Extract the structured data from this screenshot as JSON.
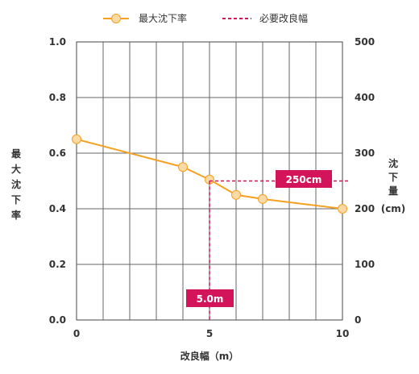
{
  "chart_data": {
    "type": "line",
    "x": [
      0,
      4,
      5,
      6,
      7,
      10
    ],
    "series": [
      {
        "name": "最大沈下率",
        "values": [
          0.65,
          0.55,
          0.505,
          0.45,
          0.435,
          0.4
        ],
        "color": "#f5a020",
        "marker_fill": "#fdd9a5"
      }
    ],
    "reference_line": {
      "name": "必要改良幅",
      "color": "#d4145a",
      "x": 5,
      "y2": 250
    },
    "xlabel": "改良幅（m）",
    "ylabel_left_chars": [
      "最",
      "大",
      "沈",
      "下",
      "率"
    ],
    "ylabel_right_chars": [
      "沈",
      "下",
      "量"
    ],
    "ylabel_right_unit": "(cm)",
    "xlim": [
      0,
      10
    ],
    "ylim": [
      0,
      1.0
    ],
    "y2lim": [
      0,
      500
    ],
    "x_ticks": [
      "0",
      "5",
      "10"
    ],
    "y_ticks": [
      "0.0",
      "0.2",
      "0.4",
      "0.6",
      "0.8",
      "1.0"
    ],
    "y2_ticks": [
      "0",
      "100",
      "200",
      "300",
      "400",
      "500"
    ],
    "annotations": {
      "x_value_label": "5.0m",
      "y2_value_label": "250cm"
    },
    "grid": true,
    "legend_position": "top"
  }
}
